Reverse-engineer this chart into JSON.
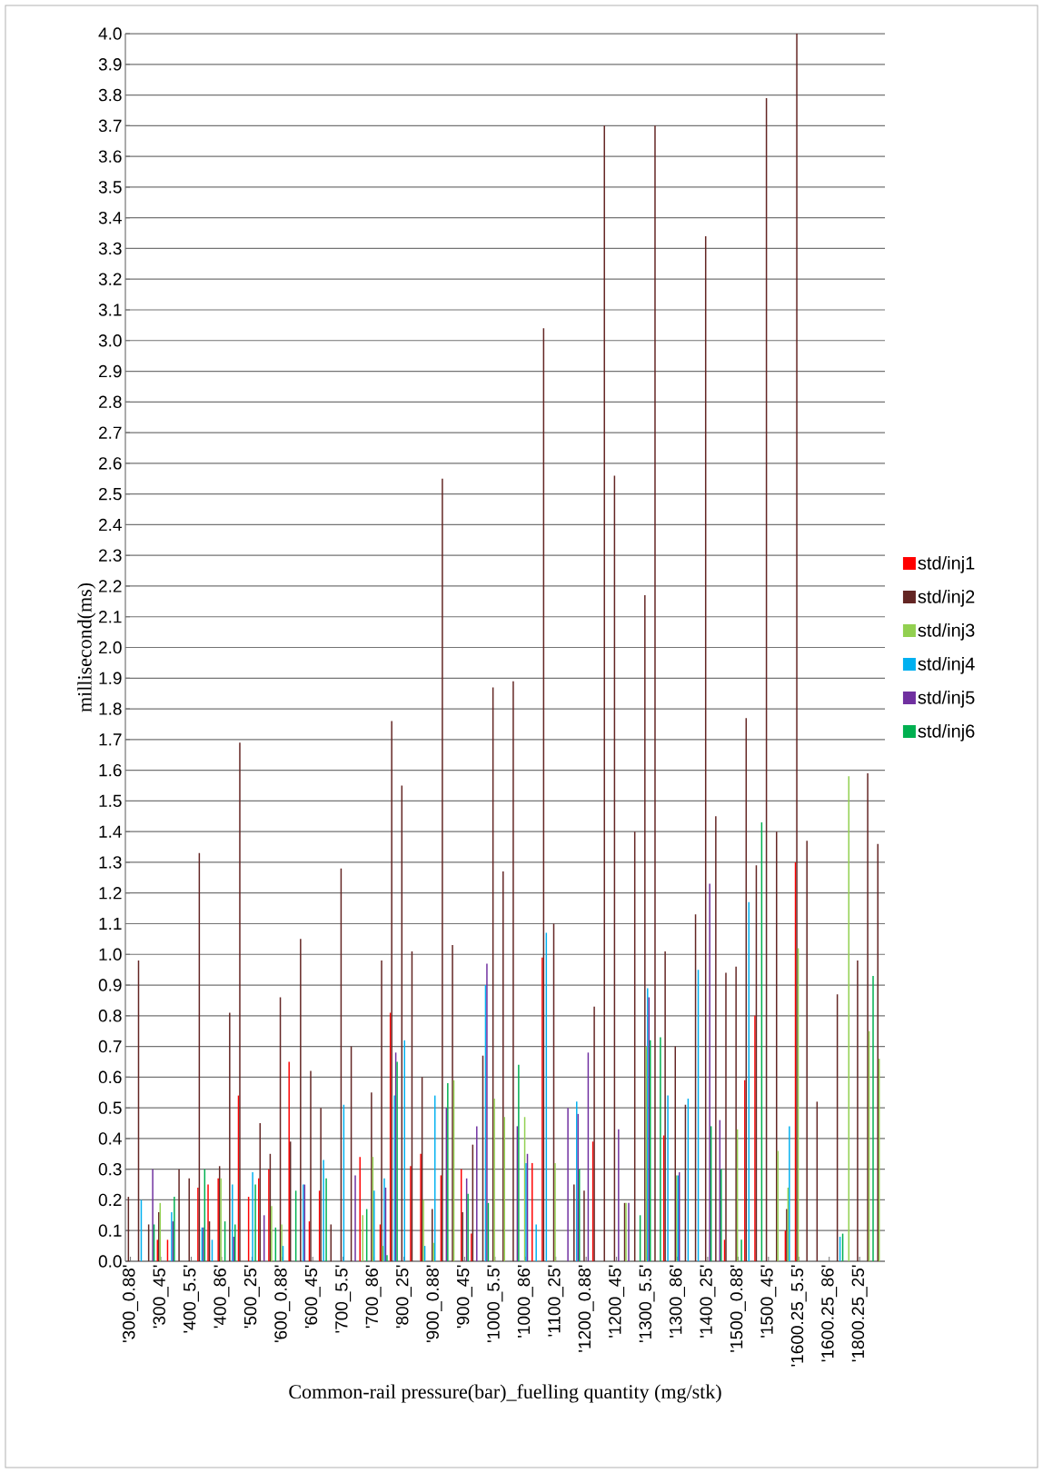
{
  "chart_data": {
    "type": "bar",
    "xlabel": "Common-rail pressure(bar)_fuelling quantity (mg/stk)",
    "ylabel": "millisecond(ms)",
    "categories": [
      "'300_0.88'",
      null,
      null,
      "'300_45'",
      null,
      null,
      "'400_5.5'",
      null,
      null,
      "'400_86'",
      null,
      null,
      "'500_25'",
      null,
      null,
      "'600_0.88'",
      null,
      null,
      "'600_45'",
      null,
      null,
      "'700_5.5'",
      null,
      null,
      "'700_86'",
      null,
      null,
      "'800_25'",
      null,
      null,
      "'900_0.88'",
      null,
      null,
      "'900_45'",
      null,
      null,
      "'1000_5.5'",
      null,
      null,
      "'1000_86'",
      null,
      null,
      "'1100_25'",
      null,
      null,
      "'1200_0.88'",
      null,
      null,
      "'1200_45'",
      null,
      null,
      "'1300_5.5'",
      null,
      null,
      "'1300_86'",
      null,
      null,
      "'1400_25'",
      null,
      null,
      "'1500_0.88'",
      null,
      null,
      "'1500_45'",
      null,
      null,
      "'1600.25_5.5'",
      null,
      null,
      "'1600.25_86'",
      null,
      null,
      "'1800.25_25'",
      null,
      null
    ],
    "series": [
      {
        "name": "std/inj1",
        "color": "#ff0000",
        "values": [
          null,
          null,
          null,
          0.07,
          0.07,
          null,
          null,
          0.24,
          0.25,
          0.27,
          null,
          0.54,
          0.21,
          0.27,
          0.3,
          null,
          0.65,
          null,
          0.13,
          0.23,
          null,
          null,
          null,
          0.34,
          null,
          0.12,
          0.81,
          null,
          0.31,
          0.35,
          null,
          0.28,
          null,
          0.3,
          0.09,
          null,
          null,
          null,
          null,
          null,
          0.32,
          0.99,
          null,
          null,
          null,
          null,
          0.39,
          null,
          null,
          null,
          null,
          null,
          null,
          0.41,
          null,
          null,
          null,
          null,
          null,
          0.07,
          null,
          0.59,
          0.8,
          null,
          null,
          0.1,
          1.3,
          null,
          null,
          null,
          null,
          null,
          null,
          null,
          null
        ]
      },
      {
        "name": "std/inj2",
        "color": "#632523",
        "values": [
          0.21,
          0.98,
          0.12,
          0.16,
          null,
          0.3,
          0.27,
          1.33,
          0.13,
          0.31,
          0.81,
          1.69,
          null,
          0.45,
          0.35,
          0.86,
          0.39,
          1.05,
          0.62,
          0.5,
          0.12,
          1.28,
          0.7,
          null,
          0.55,
          0.98,
          1.76,
          1.55,
          1.01,
          0.6,
          0.17,
          2.55,
          1.03,
          0.16,
          0.38,
          0.67,
          1.87,
          1.27,
          1.89,
          null,
          null,
          3.04,
          1.1,
          null,
          0.25,
          0.23,
          0.83,
          3.7,
          2.56,
          0.19,
          1.4,
          2.17,
          3.7,
          1.01,
          0.7,
          0.51,
          1.13,
          3.34,
          1.45,
          0.94,
          0.96,
          1.77,
          1.29,
          3.79,
          1.4,
          0.17,
          4.0,
          1.37,
          0.52,
          null,
          0.87,
          null,
          0.98,
          1.59,
          1.36
        ]
      },
      {
        "name": "std/inj3",
        "color": "#92d050",
        "values": [
          null,
          null,
          null,
          0.19,
          null,
          null,
          null,
          null,
          null,
          0.27,
          null,
          null,
          null,
          null,
          0.18,
          0.12,
          null,
          null,
          null,
          null,
          null,
          null,
          null,
          0.15,
          0.34,
          0.05,
          null,
          null,
          null,
          0.2,
          0.06,
          null,
          0.59,
          null,
          null,
          null,
          0.53,
          0.47,
          null,
          0.47,
          null,
          null,
          0.32,
          null,
          null,
          null,
          null,
          null,
          null,
          0.19,
          null,
          0.7,
          null,
          null,
          0.28,
          null,
          null,
          null,
          null,
          null,
          0.43,
          null,
          null,
          null,
          0.36,
          0.24,
          1.02,
          null,
          null,
          null,
          null,
          1.58,
          null,
          0.75,
          0.66
        ]
      },
      {
        "name": "std/inj4",
        "color": "#00b0f0",
        "values": [
          null,
          0.2,
          null,
          null,
          0.16,
          null,
          null,
          0.11,
          0.07,
          null,
          0.25,
          null,
          0.29,
          null,
          null,
          0.05,
          null,
          0.25,
          null,
          0.33,
          null,
          0.51,
          null,
          null,
          0.23,
          0.27,
          0.54,
          0.72,
          null,
          0.05,
          0.54,
          null,
          null,
          null,
          null,
          0.9,
          null,
          null,
          null,
          0.32,
          0.12,
          1.07,
          null,
          null,
          0.52,
          null,
          null,
          null,
          null,
          null,
          null,
          0.89,
          null,
          0.54,
          0.28,
          0.53,
          0.95,
          null,
          null,
          null,
          null,
          1.17,
          null,
          null,
          null,
          0.44,
          null,
          null,
          null,
          null,
          0.08,
          null,
          null,
          null,
          null
        ]
      },
      {
        "name": "std/inj5",
        "color": "#7030a0",
        "values": [
          null,
          null,
          0.3,
          null,
          0.13,
          null,
          null,
          0.11,
          null,
          null,
          0.08,
          null,
          null,
          0.15,
          null,
          null,
          null,
          0.25,
          null,
          null,
          null,
          null,
          0.28,
          null,
          null,
          0.24,
          0.68,
          null,
          null,
          null,
          null,
          0.5,
          null,
          0.27,
          0.44,
          0.97,
          null,
          null,
          0.44,
          0.35,
          null,
          null,
          null,
          0.5,
          0.48,
          0.68,
          null,
          null,
          0.43,
          0.19,
          null,
          0.86,
          null,
          null,
          0.29,
          null,
          null,
          1.23,
          0.46,
          null,
          null,
          null,
          null,
          null,
          null,
          null,
          null,
          null,
          null,
          null,
          null,
          null,
          null,
          null,
          null
        ]
      },
      {
        "name": "std/inj6",
        "color": "#00b050",
        "values": [
          null,
          null,
          0.12,
          null,
          0.21,
          null,
          null,
          0.3,
          null,
          0.13,
          0.12,
          null,
          0.25,
          null,
          0.11,
          null,
          0.23,
          null,
          null,
          0.27,
          null,
          null,
          null,
          0.17,
          null,
          0.02,
          0.65,
          null,
          null,
          null,
          null,
          0.58,
          null,
          0.22,
          null,
          0.19,
          null,
          null,
          0.64,
          null,
          null,
          null,
          null,
          null,
          0.3,
          null,
          null,
          null,
          null,
          null,
          0.15,
          0.72,
          0.73,
          null,
          null,
          null,
          null,
          0.44,
          0.3,
          null,
          0.07,
          null,
          1.43,
          null,
          null,
          null,
          null,
          null,
          null,
          null,
          0.09,
          null,
          null,
          0.93,
          null
        ]
      }
    ],
    "ylim": [
      0,
      4
    ],
    "yticks": [
      {
        "value": 0,
        "label": "0.0"
      },
      0.1,
      0.2,
      0.3,
      0.4,
      0.5,
      0.6,
      0.7,
      0.8,
      0.9,
      {
        "value": 1,
        "label": "1.0"
      },
      1.1,
      1.2,
      1.3,
      1.4,
      1.5,
      1.6,
      1.7,
      1.8,
      1.9,
      {
        "value": 2,
        "label": "2.0"
      },
      2.1,
      2.2,
      2.3,
      2.4,
      2.5,
      2.6,
      2.7,
      2.8,
      2.9,
      {
        "value": 3,
        "label": "3.0"
      },
      3.1,
      3.2,
      3.3,
      3.4,
      3.5,
      3.6,
      3.7,
      3.8,
      3.9,
      {
        "value": 4,
        "label": "4.0"
      }
    ],
    "grid": "y",
    "legend": "right"
  }
}
